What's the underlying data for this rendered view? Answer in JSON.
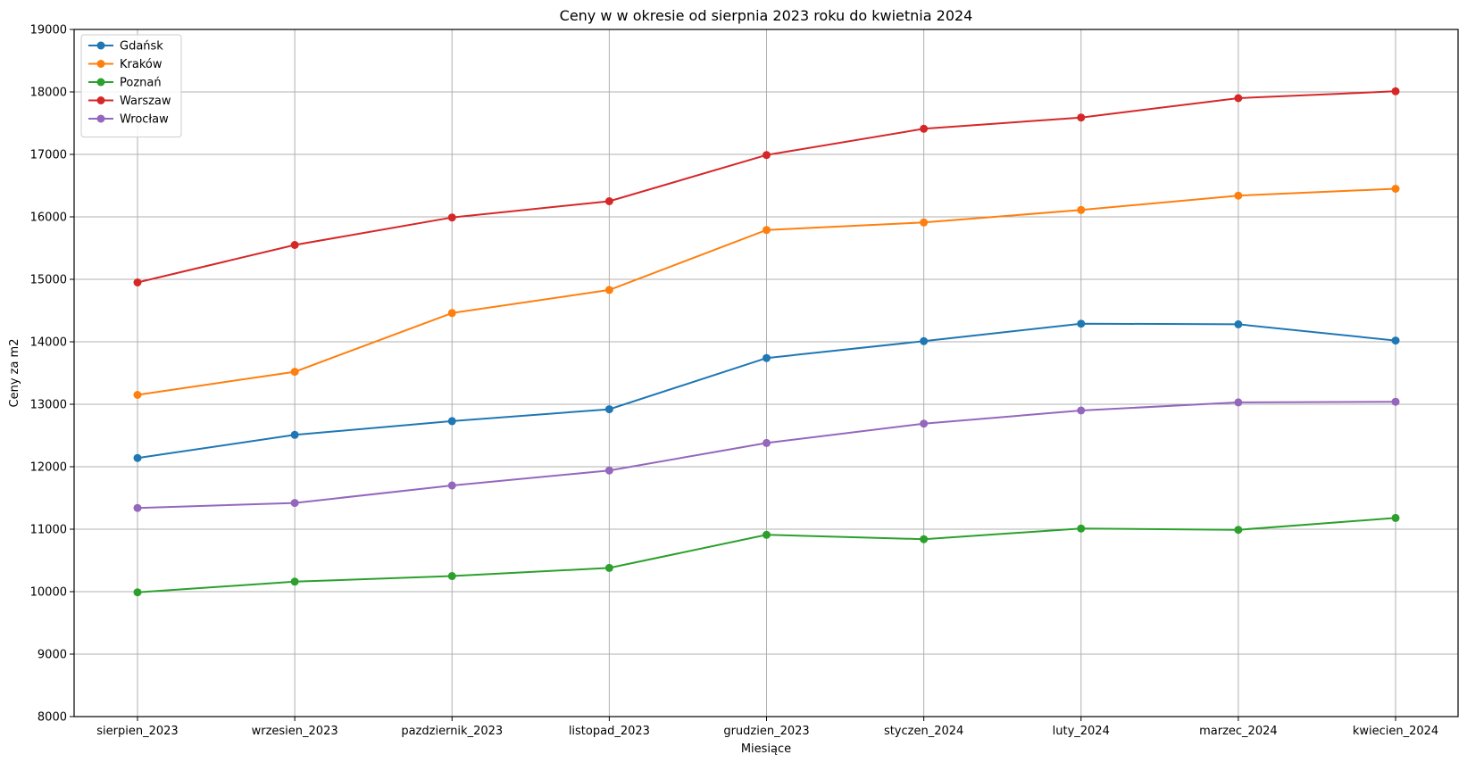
{
  "chart_data": {
    "type": "line",
    "title": "Ceny w w okresie od sierpnia 2023 roku do kwietnia 2024",
    "xlabel": "Miesiące",
    "ylabel": "Ceny za m2",
    "ylim": [
      8000,
      19000
    ],
    "yticks": [
      8000,
      9000,
      10000,
      11000,
      12000,
      13000,
      14000,
      15000,
      16000,
      17000,
      18000,
      19000
    ],
    "grid": true,
    "legend_position": "top-left",
    "categories": [
      "sierpien_2023",
      "wrzesien_2023",
      "pazdziernik_2023",
      "listopad_2023",
      "grudzien_2023",
      "styczen_2024",
      "luty_2024",
      "marzec_2024",
      "kwiecien_2024"
    ],
    "series": [
      {
        "name": "Gdańsk",
        "color": "#1f77b4",
        "values": [
          12140,
          12510,
          12730,
          12920,
          13740,
          14010,
          14290,
          14280,
          14020
        ]
      },
      {
        "name": "Kraków",
        "color": "#ff7f0e",
        "values": [
          13150,
          13520,
          14460,
          14830,
          15790,
          15910,
          16110,
          16340,
          16450
        ]
      },
      {
        "name": "Poznań",
        "color": "#2ca02c",
        "values": [
          9990,
          10160,
          10250,
          10380,
          10910,
          10840,
          11010,
          10990,
          11180
        ]
      },
      {
        "name": "Warszaw",
        "color": "#d62728",
        "values": [
          14950,
          15550,
          15990,
          16250,
          16990,
          17410,
          17590,
          17900,
          18010
        ]
      },
      {
        "name": "Wrocław",
        "color": "#9467bd",
        "values": [
          11340,
          11420,
          11700,
          11940,
          12380,
          12690,
          12900,
          13030,
          13040
        ]
      }
    ]
  }
}
